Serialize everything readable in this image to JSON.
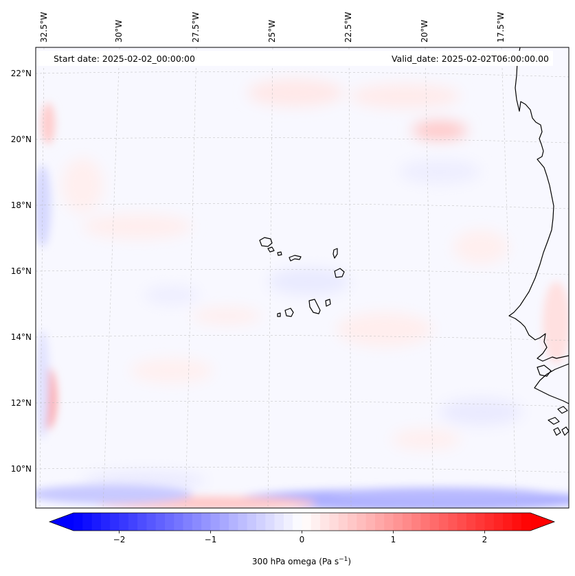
{
  "header": {
    "start_date": "Start date: 2025-02-02_00:00:00",
    "valid_date": "Valid_date: 2025-02-02T06:00:00.00"
  },
  "map": {
    "lon_labels": [
      "32.5°W",
      "30°W",
      "27.5°W",
      "25°W",
      "22.5°W",
      "20°W",
      "17.5°W"
    ],
    "lat_labels": [
      "22°N",
      "20°N",
      "18°N",
      "16°N",
      "14°N",
      "12°N",
      "10°N"
    ],
    "gridlines": true
  },
  "colorbar": {
    "label_main": "300 hPa omega (Pa s",
    "label_exp": "−1",
    "label_close": ")",
    "ticks": [
      "−2",
      "−1",
      "0",
      "1",
      "2"
    ],
    "tick_values": [
      -2,
      -1,
      0,
      1,
      2
    ],
    "range": [
      -2.5,
      2.5
    ],
    "colormap": "bwr",
    "low_color": "#0000ff",
    "mid_color": "#ffffff",
    "high_color": "#ff0000",
    "extend": "both"
  }
}
